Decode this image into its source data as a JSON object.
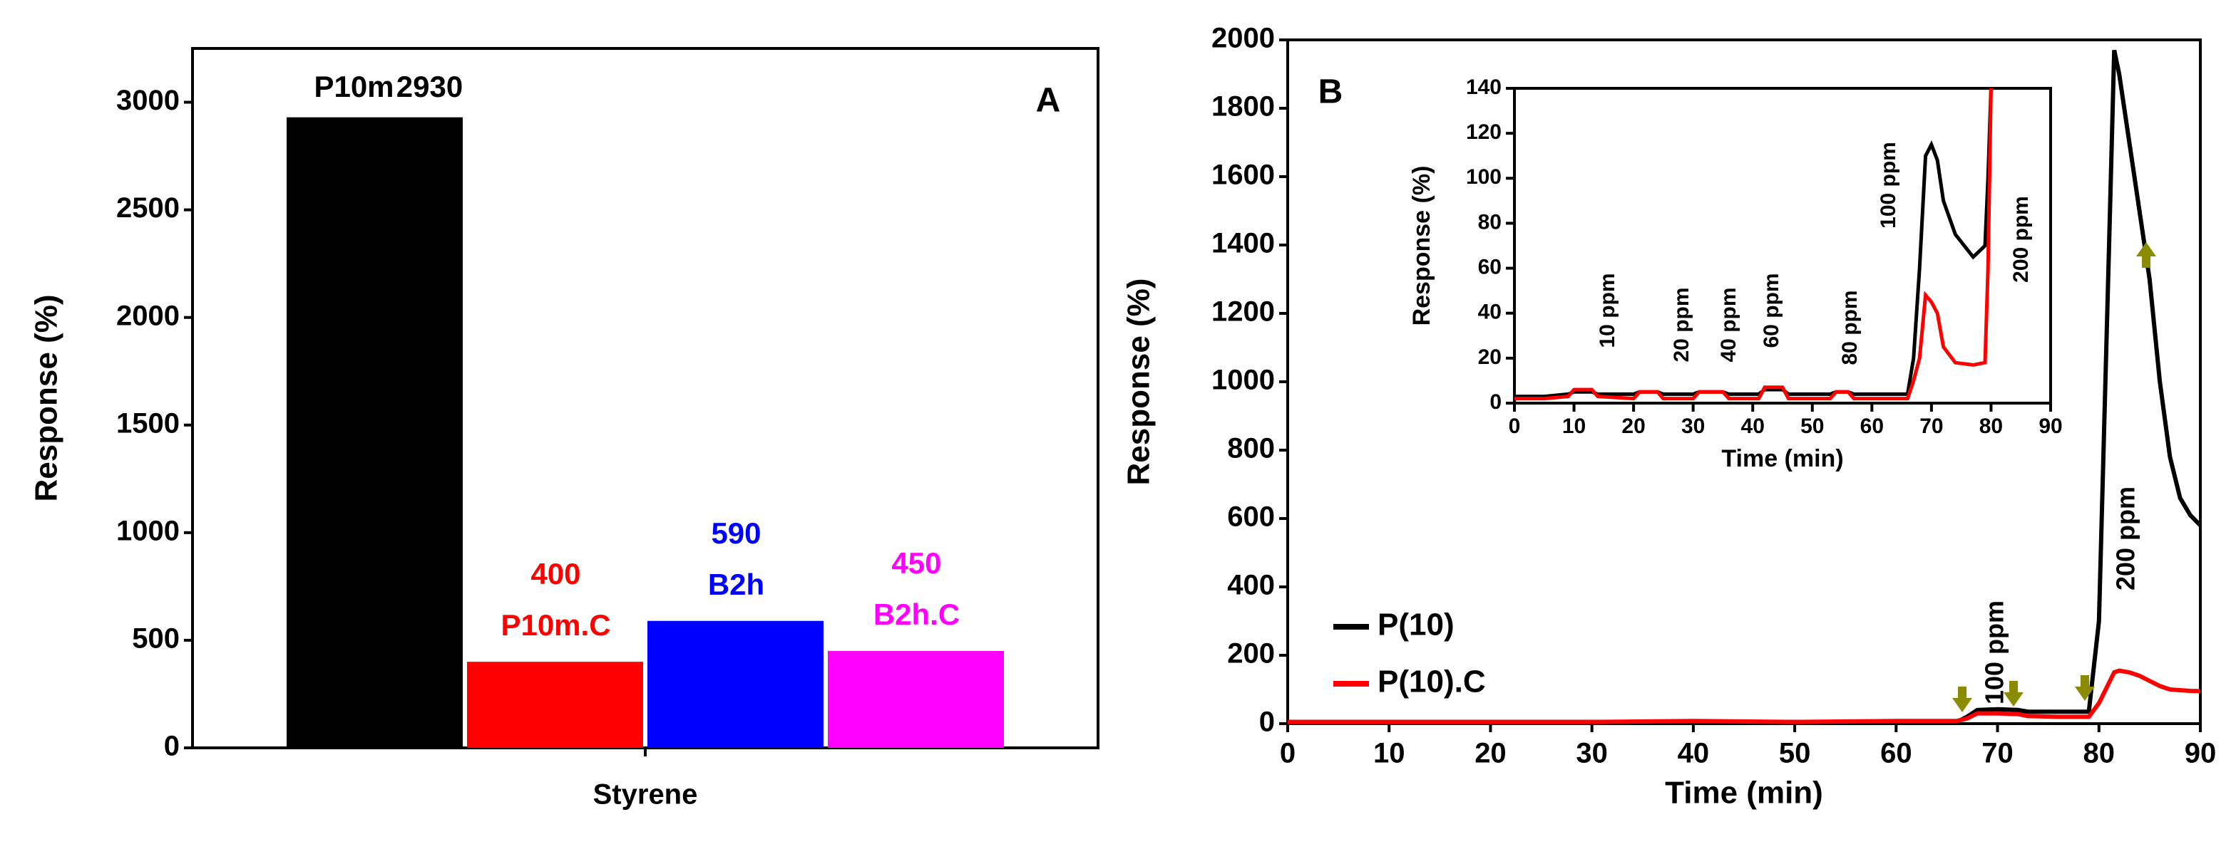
{
  "chart_data": [
    {
      "type": "bar",
      "panel": "A",
      "categories": [
        "Styrene"
      ],
      "ylabel": "Response (%)",
      "ylim": [
        0,
        3250
      ],
      "yticks": [
        0,
        500,
        1000,
        1500,
        2000,
        2500,
        3000
      ],
      "series": [
        {
          "name": "P10m",
          "color": "#000000",
          "values": [
            2930
          ]
        },
        {
          "name": "P10m.C",
          "color": "#ff0000",
          "values": [
            400
          ]
        },
        {
          "name": "B2h",
          "color": "#0000ff",
          "values": [
            590
          ]
        },
        {
          "name": "B2h.C",
          "color": "#ff00ff",
          "values": [
            450
          ]
        }
      ]
    },
    {
      "type": "line",
      "panel": "B",
      "xlabel": "Time (min)",
      "ylabel": "Response (%)",
      "xlim": [
        0,
        90
      ],
      "xticks": [
        0,
        10,
        20,
        30,
        40,
        50,
        60,
        70,
        80,
        90
      ],
      "ylim": [
        0,
        2000
      ],
      "yticks": [
        0,
        200,
        400,
        600,
        800,
        1000,
        1200,
        1400,
        1600,
        1800,
        2000
      ],
      "x": [
        0,
        10,
        20,
        30,
        40,
        50,
        60,
        66,
        67,
        68,
        70,
        72,
        73,
        76,
        79,
        80,
        81,
        81.5,
        82,
        83,
        84,
        85,
        86,
        87,
        88,
        89,
        90
      ],
      "series": [
        {
          "name": "P(10)",
          "color": "#000000",
          "values": [
            5,
            5,
            5,
            5,
            5,
            5,
            5,
            5,
            20,
            40,
            42,
            40,
            35,
            35,
            35,
            300,
            1400,
            1970,
            1900,
            1700,
            1500,
            1300,
            1000,
            780,
            660,
            610,
            580
          ]
        },
        {
          "name": "P(10).C",
          "color": "#ff0000",
          "values": [
            5,
            5,
            5,
            5,
            8,
            5,
            8,
            8,
            15,
            30,
            30,
            28,
            22,
            20,
            20,
            60,
            120,
            150,
            155,
            150,
            140,
            125,
            110,
            100,
            98,
            96,
            95
          ]
        }
      ],
      "annotations": [
        "100 ppm",
        "200 ppm"
      ]
    },
    {
      "type": "line",
      "xlabel": "Time (min)",
      "ylabel": "Response (%)",
      "xlim": [
        0,
        90
      ],
      "xticks": [
        0,
        10,
        20,
        30,
        40,
        50,
        60,
        70,
        80,
        90
      ],
      "ylim": [
        0,
        140
      ],
      "yticks": [
        0,
        20,
        40,
        60,
        80,
        100,
        120,
        140
      ],
      "x": [
        0,
        5,
        9,
        10,
        13,
        14,
        20,
        21,
        24,
        25,
        30,
        31,
        35,
        36,
        41,
        42,
        45,
        46,
        53,
        54,
        56,
        57,
        66,
        67,
        68,
        69,
        70,
        71,
        72,
        74,
        77,
        79,
        79.5,
        80
      ],
      "series": [
        {
          "color": "#000000",
          "values": [
            3,
            3,
            4,
            5,
            5,
            4,
            4,
            5,
            5,
            4,
            4,
            5,
            5,
            4,
            4,
            6,
            6,
            4,
            4,
            5,
            5,
            4,
            4,
            20,
            60,
            110,
            115,
            108,
            90,
            75,
            65,
            70,
            100,
            140
          ]
        },
        {
          "color": "#ff0000",
          "values": [
            2,
            2,
            3,
            6,
            6,
            3,
            2,
            5,
            5,
            2,
            2,
            5,
            5,
            2,
            2,
            7,
            7,
            2,
            2,
            5,
            5,
            2,
            2,
            10,
            20,
            48,
            45,
            40,
            25,
            18,
            17,
            18,
            60,
            140
          ]
        }
      ],
      "annotations": [
        "10 ppm",
        "20 ppm",
        "40 ppm",
        "60 ppm",
        "80 ppm",
        "100 ppm",
        "200 ppm"
      ]
    }
  ]
}
